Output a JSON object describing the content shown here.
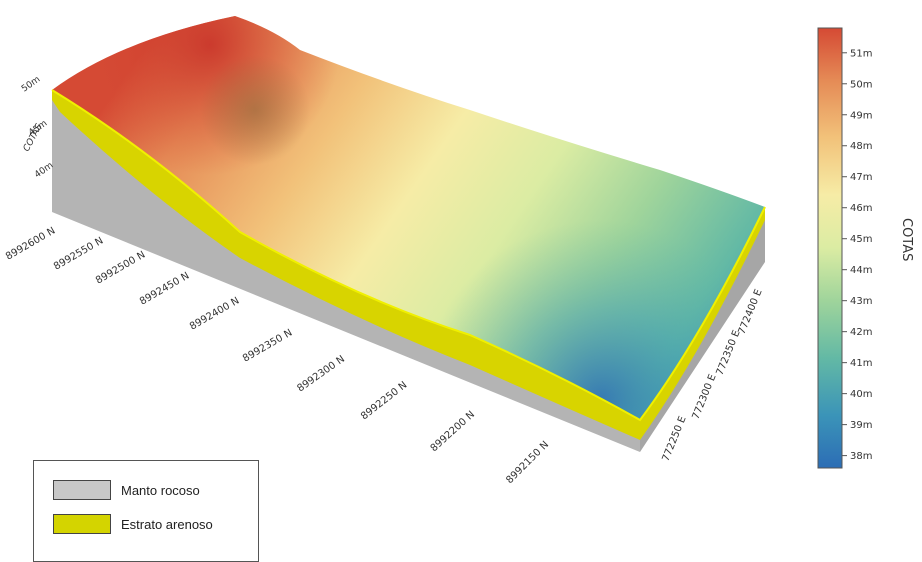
{
  "colors": {
    "bedrock": "#b4b4b4",
    "bedrock_dark": "#a6a6a6",
    "sand": "#d8d400",
    "sand_edge": "#f0f000",
    "scale": [
      "#2c6db5",
      "#3b94b8",
      "#63b9a5",
      "#9fd49b",
      "#dbeca3",
      "#f6eca6",
      "#f2c27a",
      "#e58b56",
      "#d54a34"
    ]
  },
  "z_axis": {
    "title": "COTAS",
    "ticks": [
      "50m",
      "45m",
      "40m"
    ]
  },
  "north_axis": {
    "ticks": [
      "8992600 N",
      "8992550 N",
      "8992500 N",
      "8992450 N",
      "8992400 N",
      "8992350 N",
      "8992300 N",
      "8992250 N",
      "8992200 N",
      "8992150 N"
    ]
  },
  "east_axis": {
    "ticks": [
      "772250 E",
      "772300 E",
      "772350 E",
      "772400 E"
    ]
  },
  "colorbar": {
    "title": "COTAS",
    "min": 37.6,
    "max": 51.8,
    "ticks": [
      "51m",
      "50m",
      "49m",
      "48m",
      "47m",
      "46m",
      "45m",
      "44m",
      "43m",
      "42m",
      "41m",
      "40m",
      "39m",
      "38m"
    ]
  },
  "legend": {
    "items": [
      {
        "label": "Manto rocoso",
        "color": "#c8c8c8"
      },
      {
        "label": "Estrato arenoso",
        "color": "#d4d400"
      }
    ]
  }
}
